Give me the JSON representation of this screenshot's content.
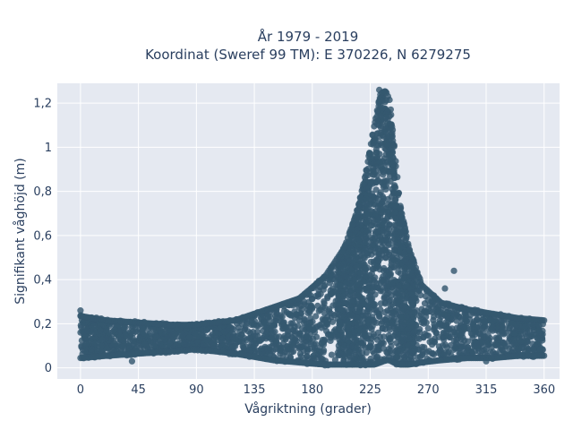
{
  "chart_data": {
    "type": "scatter",
    "title_line1": "År 1979 - 2019",
    "title_line2": "Koordinat (Sweref 99 TM): E 370226, N 6279275",
    "xlabel": "Vågriktning (grader)",
    "ylabel": "Signifikant våghöjd (m)",
    "xlim": [
      -18,
      372
    ],
    "ylim": [
      -0.05,
      1.29
    ],
    "xticks": [
      0,
      45,
      90,
      135,
      180,
      225,
      270,
      315,
      360
    ],
    "xtick_labels": [
      "0",
      "45",
      "90",
      "135",
      "180",
      "225",
      "270",
      "315",
      "360"
    ],
    "yticks": [
      0,
      0.2,
      0.4,
      0.6,
      0.8,
      1.0,
      1.2
    ],
    "ytick_labels": [
      "0",
      "0,2",
      "0,4",
      "0,6",
      "0,8",
      "1",
      "1,2"
    ],
    "grid": true,
    "colors": {
      "marker": "#34586f",
      "plot_bg": "#e5e9f1",
      "grid": "#ffffff",
      "text": "#2a3f5f"
    },
    "envelope": {
      "x": [
        0,
        20,
        45,
        70,
        90,
        120,
        150,
        170,
        190,
        205,
        215,
        222,
        228,
        233,
        237,
        240,
        243,
        248,
        255,
        265,
        280,
        300,
        320,
        340,
        360
      ],
      "ymax": [
        0.24,
        0.22,
        0.21,
        0.2,
        0.2,
        0.22,
        0.28,
        0.32,
        0.42,
        0.55,
        0.72,
        0.9,
        1.1,
        1.25,
        1.26,
        1.22,
        1.05,
        0.75,
        0.55,
        0.38,
        0.3,
        0.27,
        0.25,
        0.23,
        0.22
      ],
      "ymin": [
        0.04,
        0.05,
        0.06,
        0.07,
        0.08,
        0.06,
        0.03,
        0.02,
        0.01,
        0.01,
        0.01,
        0.01,
        0.01,
        0.02,
        0.03,
        0.03,
        0.02,
        0.01,
        0.01,
        0.02,
        0.03,
        0.04,
        0.04,
        0.05,
        0.05
      ]
    },
    "outliers": [
      {
        "x": 0,
        "y": 0.26
      },
      {
        "x": 290,
        "y": 0.44
      },
      {
        "x": 283,
        "y": 0.36
      },
      {
        "x": 258,
        "y": 0.46
      },
      {
        "x": 232,
        "y": 1.26
      },
      {
        "x": 40,
        "y": 0.03
      },
      {
        "x": 315,
        "y": 0.03
      }
    ]
  }
}
